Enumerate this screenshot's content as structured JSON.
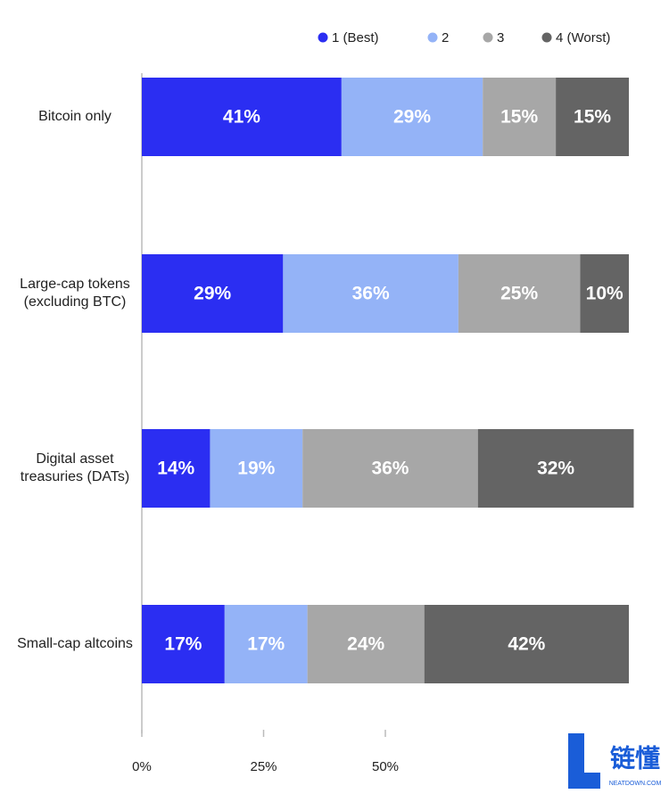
{
  "chart_data": {
    "type": "stacked-bar-horizontal",
    "categories": [
      "Bitcoin only",
      "Large-cap tokens (excluding BTC)",
      "Digital asset treasuries (DATs)",
      "Small-cap altcoins"
    ],
    "series": [
      {
        "name": "1 (Best)",
        "color": "#2b2ef2",
        "values": [
          41,
          29,
          14,
          17
        ],
        "value_labels": [
          "41%",
          "29%",
          "14%",
          "17%"
        ]
      },
      {
        "name": "2",
        "color": "#94b3f7",
        "values": [
          29,
          36,
          19,
          17
        ],
        "value_labels": [
          "29%",
          "36%",
          "19%",
          "17%"
        ]
      },
      {
        "name": "3",
        "color": "#a7a7a7",
        "values": [
          15,
          25,
          36,
          24
        ],
        "value_labels": [
          "15%",
          "25%",
          "36%",
          "24%"
        ]
      },
      {
        "name": "4 (Worst)",
        "color": "#646464",
        "values": [
          15,
          10,
          32,
          42
        ],
        "value_labels": [
          "15%",
          "10%",
          "32%",
          "42%"
        ]
      }
    ],
    "xlim": [
      0,
      100
    ],
    "xticks": [
      {
        "value": 0,
        "label": "0%"
      },
      {
        "value": 25,
        "label": "25%"
      },
      {
        "value": 50,
        "label": "50%"
      }
    ],
    "legend": "top-right"
  },
  "watermark": {
    "text": "链懂",
    "sub": "NEATDOWN.COM"
  }
}
